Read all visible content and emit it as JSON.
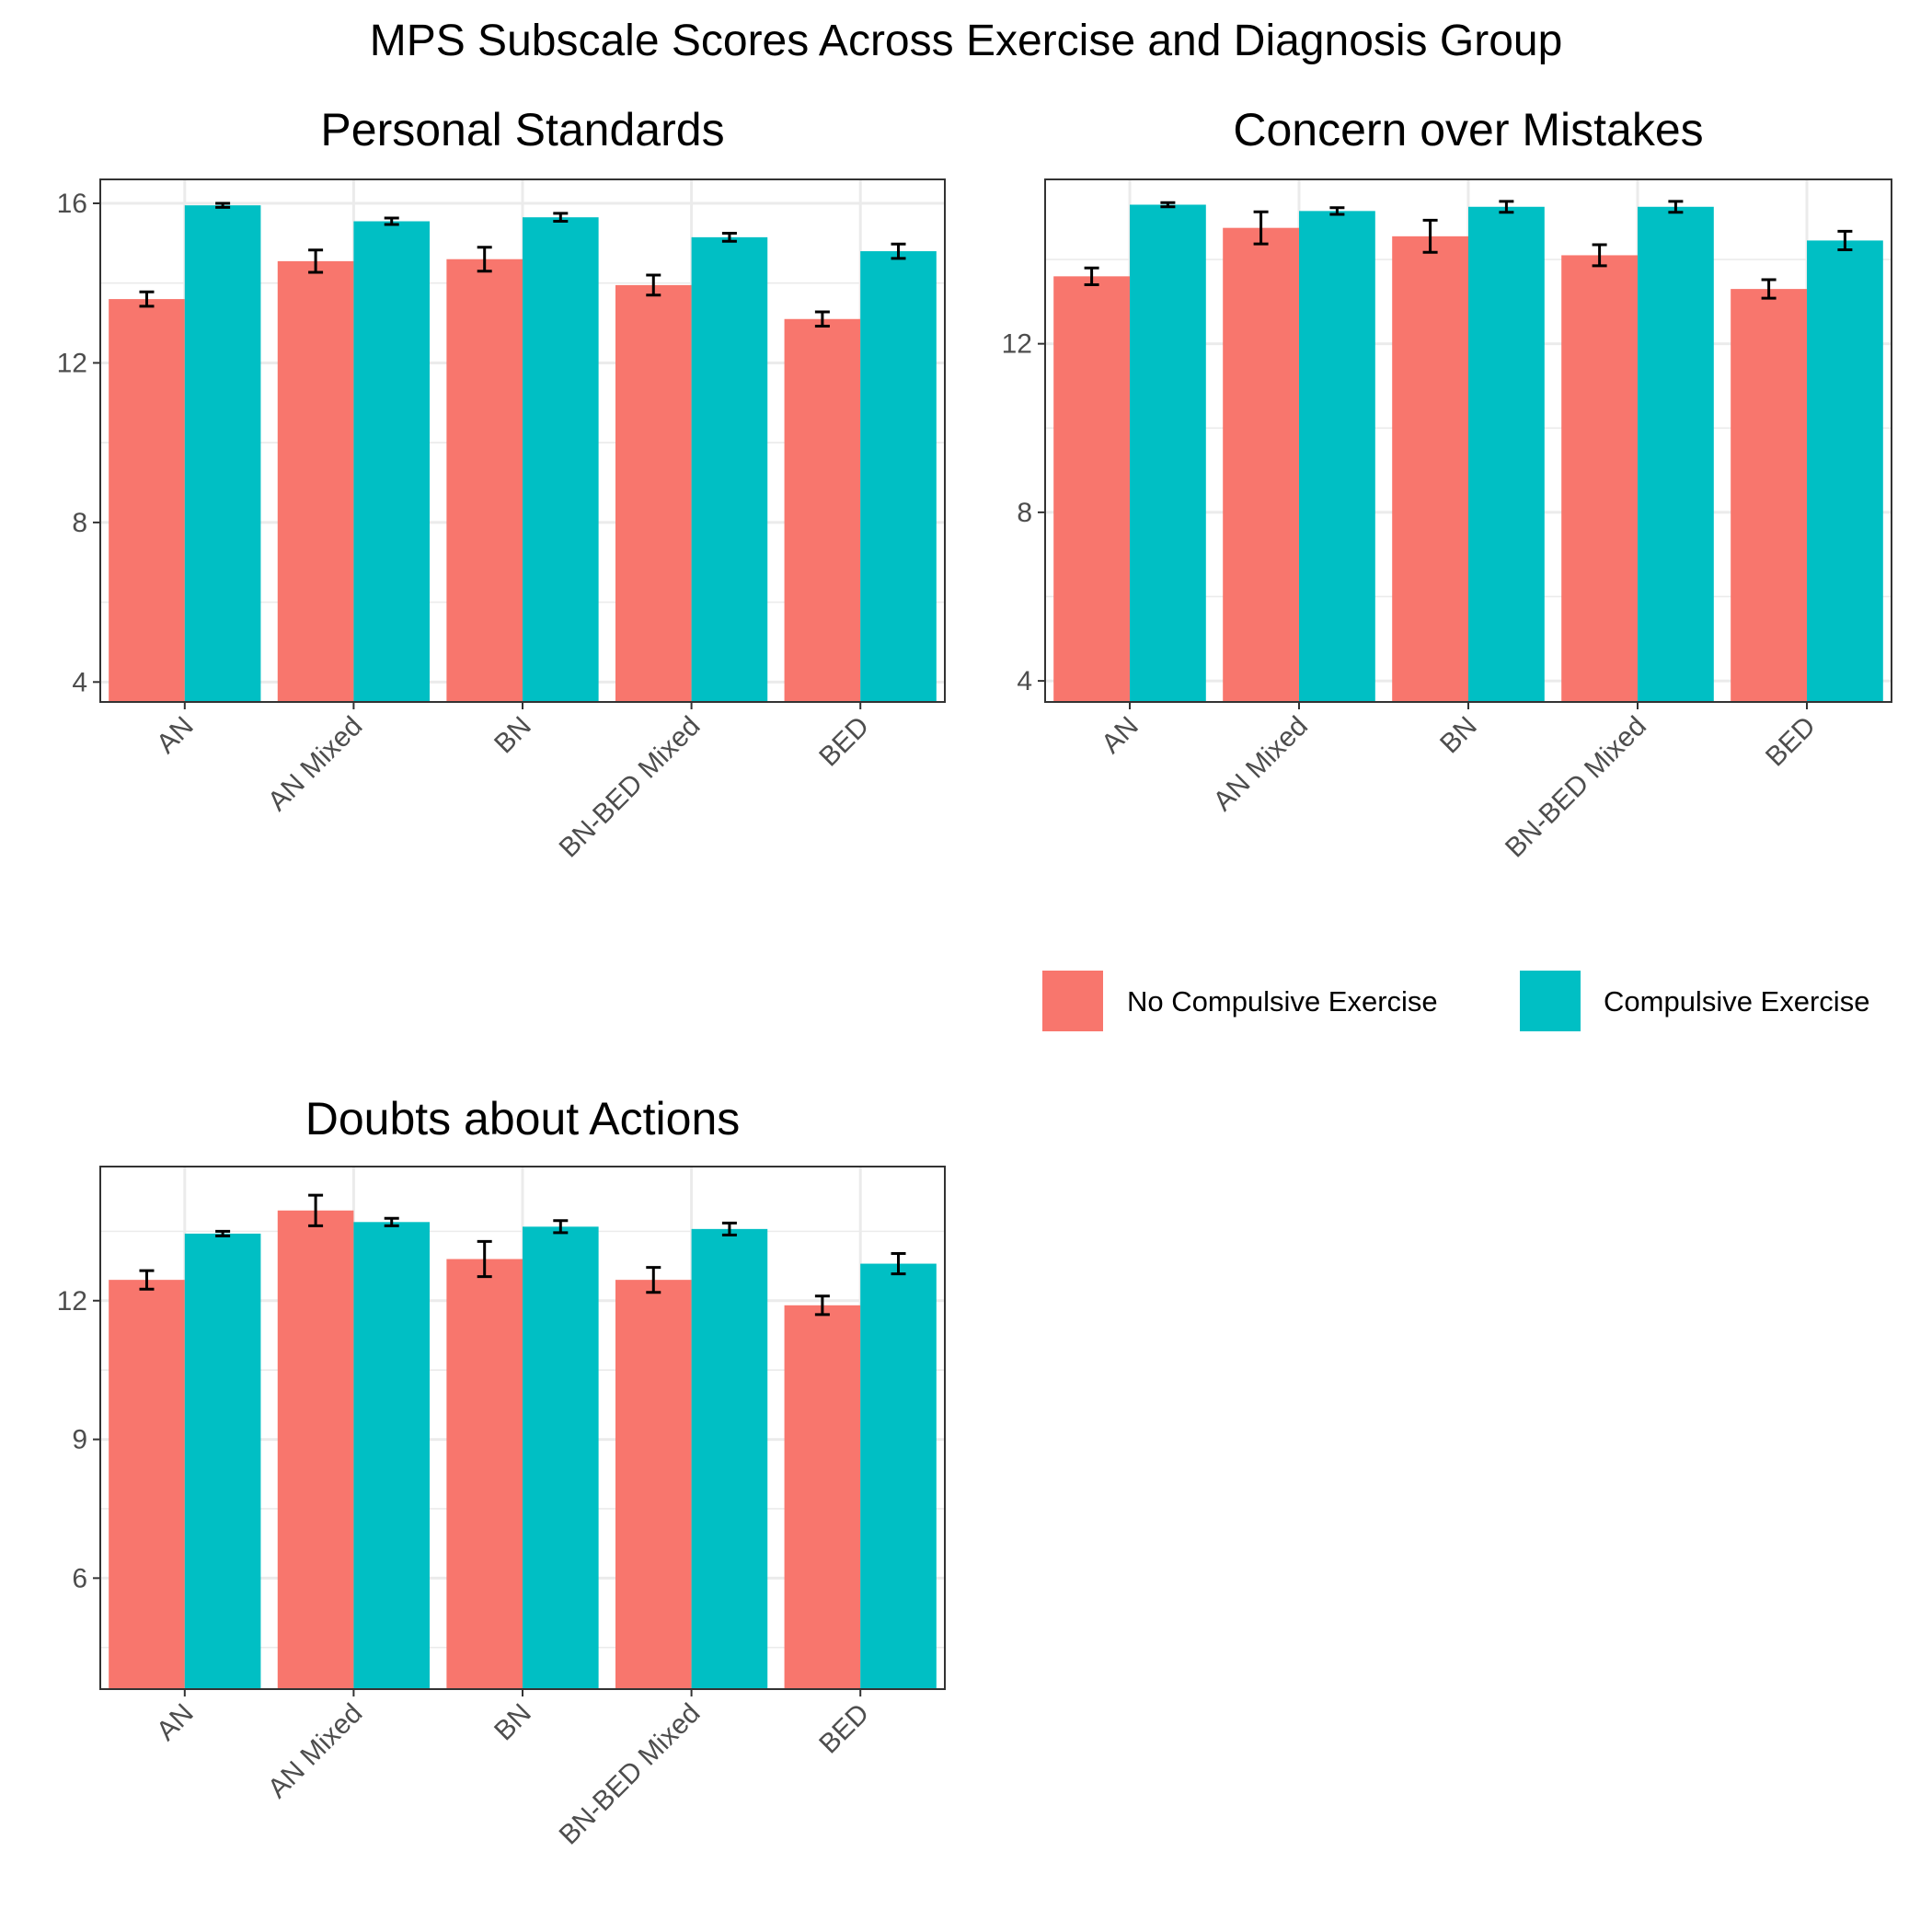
{
  "title": "MPS Subscale Scores Across Exercise and Diagnosis Group",
  "legend": {
    "position": "right of top panels",
    "items": [
      {
        "label": "No Compulsive Exercise",
        "color": "#F8766D"
      },
      {
        "label": "Compulsive Exercise",
        "color": "#00BFC4"
      }
    ]
  },
  "chart_data": [
    {
      "type": "bar",
      "title": "Personal Standards",
      "xlabel": "",
      "ylabel": "",
      "categories": [
        "AN",
        "AN Mixed",
        "BN",
        "BN-BED Mixed",
        "BED"
      ],
      "ylim": [
        3.5,
        16.6
      ],
      "yticks": [
        4,
        8,
        12,
        16
      ],
      "grid": true,
      "series": [
        {
          "name": "No Compulsive Exercise",
          "color": "#F8766D",
          "values": [
            13.6,
            14.55,
            14.6,
            13.95,
            13.1
          ],
          "err": [
            0.18,
            0.28,
            0.3,
            0.25,
            0.18
          ]
        },
        {
          "name": "Compulsive Exercise",
          "color": "#00BFC4",
          "values": [
            15.95,
            15.55,
            15.65,
            15.15,
            14.8
          ],
          "err": [
            0.05,
            0.08,
            0.1,
            0.1,
            0.18
          ]
        }
      ]
    },
    {
      "type": "bar",
      "title": "Concern over Mistakes",
      "xlabel": "",
      "ylabel": "",
      "categories": [
        "AN",
        "AN Mixed",
        "BN",
        "BN-BED Mixed",
        "BED"
      ],
      "ylim": [
        3.5,
        15.9
      ],
      "yticks": [
        4,
        8,
        12
      ],
      "grid": true,
      "series": [
        {
          "name": "No Compulsive Exercise",
          "color": "#F8766D",
          "values": [
            13.6,
            14.75,
            14.55,
            14.1,
            13.3
          ],
          "err": [
            0.2,
            0.38,
            0.38,
            0.25,
            0.22
          ]
        },
        {
          "name": "Compulsive Exercise",
          "color": "#00BFC4",
          "values": [
            15.3,
            15.15,
            15.25,
            15.25,
            14.45
          ],
          "err": [
            0.05,
            0.08,
            0.13,
            0.13,
            0.22
          ]
        }
      ]
    },
    {
      "type": "bar",
      "title": "Doubts about Actions",
      "xlabel": "",
      "ylabel": "",
      "categories": [
        "AN",
        "AN Mixed",
        "BN",
        "BN-BED Mixed",
        "BED"
      ],
      "ylim": [
        3.6,
        14.9
      ],
      "yticks": [
        6,
        9,
        12
      ],
      "grid": true,
      "series": [
        {
          "name": "No Compulsive Exercise",
          "color": "#F8766D",
          "values": [
            12.45,
            13.95,
            12.9,
            12.45,
            11.9
          ],
          "err": [
            0.2,
            0.33,
            0.38,
            0.27,
            0.2
          ]
        },
        {
          "name": "Compulsive Exercise",
          "color": "#00BFC4",
          "values": [
            13.45,
            13.7,
            13.6,
            13.55,
            12.8
          ],
          "err": [
            0.05,
            0.08,
            0.13,
            0.13,
            0.22
          ]
        }
      ]
    }
  ]
}
